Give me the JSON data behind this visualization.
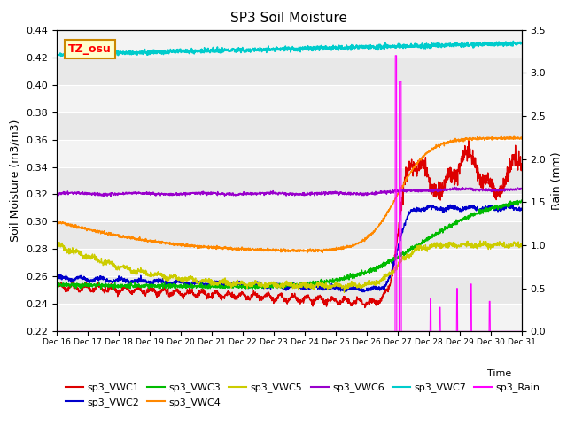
{
  "title": "SP3 Soil Moisture",
  "xlabel": "Time",
  "ylabel_left": "Soil Moisture (m3/m3)",
  "ylabel_right": "Rain (mm)",
  "xlim": [
    0,
    15
  ],
  "ylim_left": [
    0.22,
    0.44
  ],
  "ylim_right": [
    0.0,
    3.5
  ],
  "plot_bg_color": "#e8e8e8",
  "xtick_labels": [
    "Dec 16",
    "Dec 17",
    "Dec 18",
    "Dec 19",
    "Dec 20",
    "Dec 21",
    "Dec 22",
    "Dec 23",
    "Dec 24",
    "Dec 25",
    "Dec 26",
    "Dec 27",
    "Dec 28",
    "Dec 29",
    "Dec 30",
    "Dec 31"
  ],
  "annotation_box": "TZ_osu",
  "series": {
    "sp3_VWC1": {
      "color": "#dd0000",
      "lw": 1.0
    },
    "sp3_VWC2": {
      "color": "#0000cc",
      "lw": 1.0
    },
    "sp3_VWC3": {
      "color": "#00bb00",
      "lw": 1.0
    },
    "sp3_VWC4": {
      "color": "#ff8800",
      "lw": 1.0
    },
    "sp3_VWC5": {
      "color": "#cccc00",
      "lw": 1.0
    },
    "sp3_VWC6": {
      "color": "#9900cc",
      "lw": 1.0
    },
    "sp3_VWC7": {
      "color": "#00cccc",
      "lw": 1.2
    },
    "sp3_Rain": {
      "color": "#ff00ff",
      "lw": 0.8
    }
  }
}
